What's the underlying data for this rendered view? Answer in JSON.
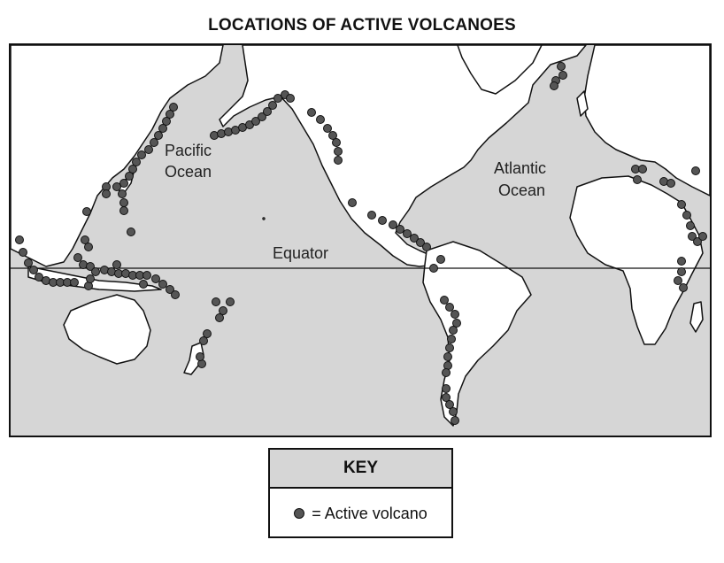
{
  "title": "LOCATIONS OF ACTIVE VOLCANOES",
  "map": {
    "labels": {
      "pacific_line1": "Pacific",
      "pacific_line2": "Ocean",
      "atlantic_line1": "Atlantic",
      "atlantic_line2": "Ocean",
      "equator": "Equator"
    },
    "colors": {
      "ocean": "#d6d6d6",
      "land": "#ffffff",
      "volcano": "#555555",
      "outline": "#111111"
    },
    "volcano_icon": "filled-circle"
  },
  "key": {
    "title": "KEY",
    "symbol_text": "= Active volcano"
  }
}
